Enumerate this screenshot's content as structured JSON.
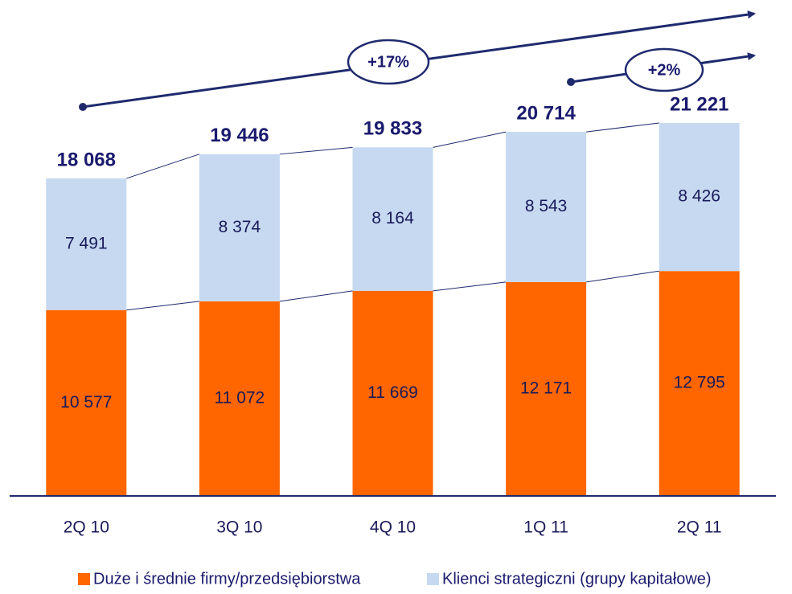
{
  "chart_data": {
    "type": "stacked-bar",
    "categories": [
      "2Q 10",
      "3Q 10",
      "4Q 10",
      "1Q 11",
      "2Q 11"
    ],
    "series": [
      {
        "name": "Duże i średnie firmy/przedsiębiorstwa",
        "color": "#ff6600",
        "values": [
          10577,
          11072,
          11669,
          12171,
          12795
        ],
        "value_labels": [
          "10 577",
          "11 072",
          "11 669",
          "12 171",
          "12 795"
        ]
      },
      {
        "name": "Klienci strategiczni (grupy kapitałowe)",
        "color": "#c6d9f1",
        "values": [
          7491,
          8374,
          8164,
          8543,
          8426
        ],
        "value_labels": [
          "7 491",
          "8 374",
          "8 164",
          "8 543",
          "8 426"
        ]
      }
    ],
    "totals": {
      "values": [
        18068,
        19446,
        19833,
        20714,
        21221
      ],
      "value_labels": [
        "18 068",
        "19 446",
        "19 833",
        "20 714",
        "21 221"
      ]
    },
    "annotations": [
      "+17%",
      "+2%"
    ],
    "legend": "bottom"
  }
}
